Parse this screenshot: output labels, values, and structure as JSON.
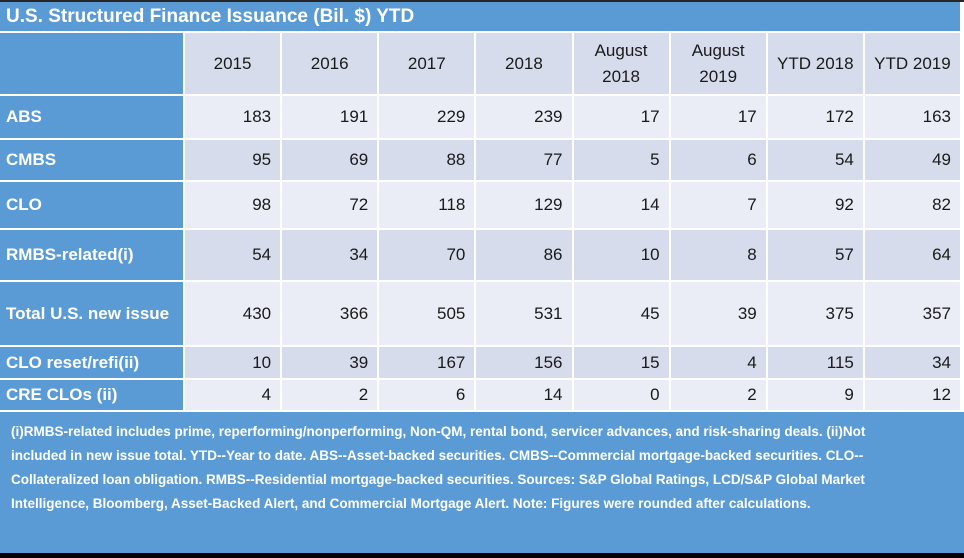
{
  "title": "U.S. Structured Finance Issuance (Bil. $) YTD",
  "footnote": "(i)RMBS-related includes prime, reperforming/nonperforming, Non-QM, rental bond, servicer advances, and risk-sharing deals. (ii)Not included in new issue total. YTD--Year to date. ABS--Asset-backed securities. CMBS--Commercial mortgage-backed securities. CLO--Collateralized loan obligation. RMBS--Residential mortgage-backed securities. Sources: S&P Global Ratings, LCD/S&P Global Market Intelligence, Bloomberg, Asset-Backed Alert, and Commercial Mortgage Alert. Note: Figures were rounded after calculations.",
  "colors": {
    "accent_blue": "#5b9bd5",
    "row_light": "#eaedf5",
    "row_dark": "#d6dcec",
    "text": "#1a1a1a",
    "gridline": "#ffffff"
  },
  "chart_data": {
    "type": "table",
    "title": "U.S. Structured Finance Issuance (Bil. $) YTD",
    "columns": [
      "2015",
      "2016",
      "2017",
      "2018",
      "August 2018",
      "August 2019",
      "YTD 2018",
      "YTD 2019"
    ],
    "rows": [
      {
        "label": "ABS",
        "values": [
          183,
          191,
          229,
          239,
          17,
          17,
          172,
          163
        ]
      },
      {
        "label": "CMBS",
        "values": [
          95,
          69,
          88,
          77,
          5,
          6,
          54,
          49
        ]
      },
      {
        "label": "CLO",
        "values": [
          98,
          72,
          118,
          129,
          14,
          7,
          92,
          82
        ]
      },
      {
        "label": "RMBS-related(i)",
        "values": [
          54,
          34,
          70,
          86,
          10,
          8,
          57,
          64
        ]
      },
      {
        "label": "Total U.S. new issue",
        "values": [
          430,
          366,
          505,
          531,
          45,
          39,
          375,
          357
        ]
      },
      {
        "label": "CLO reset/refi(ii)",
        "values": [
          10,
          39,
          167,
          156,
          15,
          4,
          115,
          34
        ]
      },
      {
        "label": "CRE CLOs (ii)",
        "values": [
          4,
          2,
          6,
          14,
          0,
          2,
          9,
          12
        ]
      }
    ]
  }
}
